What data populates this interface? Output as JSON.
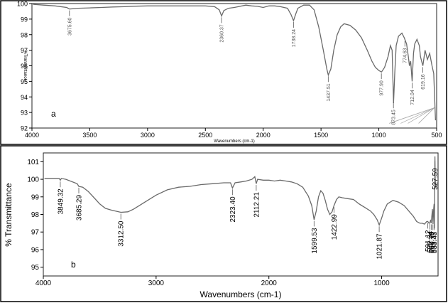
{
  "chart_data": [
    {
      "type": "line",
      "panel_label": "a",
      "title": "",
      "xlabel": "Wavenumbers (cm-1)",
      "ylabel": "%Transmittance",
      "xlim": [
        4000,
        500
      ],
      "ylim": [
        92,
        100
      ],
      "x_reversed": true,
      "grid": false,
      "x_ticks": [
        "4000",
        "3500",
        "3000",
        "2500",
        "2000",
        "1500",
        "1000",
        "500"
      ],
      "y_ticks": [
        "100",
        "99",
        "98",
        "97",
        "96",
        "95",
        "94",
        "93",
        "92"
      ],
      "series": [
        {
          "x": [
            3990,
            3900,
            3800,
            3700,
            3675,
            3600,
            3500,
            3400,
            3300,
            3200,
            3100,
            3000,
            2900,
            2800,
            2700,
            2600,
            2500,
            2420,
            2380,
            2360,
            2340,
            2300,
            2250,
            2150,
            2100,
            2050,
            2000,
            1950,
            1900,
            1850,
            1790,
            1760,
            1738,
            1715,
            1700,
            1650,
            1600,
            1560,
            1520,
            1480,
            1450,
            1437,
            1415,
            1390,
            1360,
            1330,
            1300,
            1250,
            1200,
            1150,
            1100,
            1060,
            1030,
            1000,
            977,
            950,
            920,
            900,
            885,
            873,
            862,
            850,
            830,
            800,
            780,
            760,
            745,
            735,
            725,
            712,
            700,
            690,
            670,
            650,
            640,
            630,
            619,
            600,
            580,
            560,
            540,
            525,
            510
          ],
          "y": [
            99.95,
            99.9,
            99.85,
            99.75,
            99.65,
            99.7,
            99.72,
            99.75,
            99.78,
            99.8,
            99.83,
            99.85,
            99.85,
            99.85,
            99.85,
            99.85,
            99.85,
            99.8,
            99.6,
            99.2,
            99.55,
            99.7,
            99.75,
            99.9,
            99.85,
            99.82,
            99.75,
            99.85,
            99.85,
            99.8,
            99.7,
            99.3,
            98.9,
            99.4,
            99.7,
            99.9,
            99.9,
            99.6,
            98.5,
            97.0,
            95.8,
            95.4,
            95.8,
            97.0,
            98.0,
            98.5,
            98.7,
            98.6,
            98.3,
            97.8,
            97.0,
            96.3,
            95.9,
            95.7,
            95.6,
            95.9,
            96.6,
            97.3,
            97.0,
            93.6,
            95.5,
            97.3,
            97.9,
            98.1,
            97.8,
            97.4,
            96.6,
            96.0,
            96.3,
            95.0,
            96.8,
            97.4,
            97.7,
            97.3,
            96.6,
            96.3,
            96.0,
            97.0,
            96.4,
            96.8,
            96.0,
            95.5,
            92.5
          ]
        }
      ],
      "peak_labels": [
        "3675.60",
        "2360.37",
        "1738.24",
        "1437.51",
        "977.90",
        "873.45",
        "774.63",
        "712.04",
        "619.16"
      ]
    },
    {
      "type": "line",
      "panel_label": "b",
      "title": "",
      "xlabel": "Wavenumbers (cm-1)",
      "ylabel": "% Transmittance",
      "xlim": [
        4000,
        500
      ],
      "ylim": [
        94.5,
        101.5
      ],
      "x_reversed": true,
      "grid": false,
      "x_ticks": [
        "4000",
        "3000",
        "2000",
        "1000"
      ],
      "y_ticks": [
        "101",
        "100",
        "99",
        "98",
        "97",
        "96",
        "95"
      ],
      "series": [
        {
          "x": [
            3990,
            3900,
            3860,
            3849,
            3840,
            3800,
            3700,
            3685,
            3650,
            3600,
            3550,
            3500,
            3450,
            3400,
            3350,
            3312,
            3250,
            3200,
            3100,
            3000,
            2900,
            2800,
            2700,
            2600,
            2500,
            2400,
            2340,
            2323,
            2300,
            2250,
            2200,
            2150,
            2125,
            2112,
            2100,
            2050,
            2000,
            1950,
            1900,
            1850,
            1800,
            1750,
            1700,
            1650,
            1620,
            1599,
            1580,
            1560,
            1540,
            1520,
            1500,
            1480,
            1460,
            1440,
            1423,
            1400,
            1380,
            1350,
            1300,
            1250,
            1200,
            1150,
            1100,
            1070,
            1040,
            1022,
            1000,
            980,
            950,
            900,
            850,
            800,
            760,
            720,
            690,
            660,
            640,
            620,
            600,
            591,
            580,
            572,
            565,
            561,
            550,
            545,
            540,
            535,
            533,
            530,
            528,
            525,
            520
          ],
          "y": [
            100.05,
            100.05,
            100.05,
            99.95,
            100.05,
            100.0,
            99.75,
            99.6,
            99.55,
            99.3,
            98.95,
            98.6,
            98.35,
            98.25,
            98.18,
            98.12,
            98.15,
            98.3,
            98.7,
            99.1,
            99.4,
            99.55,
            99.6,
            99.7,
            99.75,
            99.8,
            99.8,
            99.5,
            99.8,
            99.85,
            99.9,
            100.0,
            100.15,
            99.75,
            100.0,
            99.95,
            99.95,
            99.9,
            99.95,
            99.9,
            99.85,
            99.75,
            99.55,
            99.05,
            98.5,
            97.7,
            98.2,
            99.0,
            99.35,
            99.2,
            98.8,
            98.3,
            98.0,
            98.15,
            98.5,
            98.85,
            99.0,
            98.95,
            98.9,
            98.85,
            98.6,
            98.4,
            98.2,
            98.0,
            97.7,
            97.4,
            97.8,
            98.2,
            98.6,
            98.8,
            98.7,
            98.5,
            98.2,
            97.9,
            97.6,
            97.5,
            97.5,
            97.45,
            97.6,
            97.6,
            97.5,
            97.55,
            97.7,
            97.5,
            98.3,
            97.45,
            98.2,
            98.6,
            97.2,
            98.8,
            101.3,
            100.0,
            99.5
          ]
        }
      ],
      "peak_labels": [
        "3849.32",
        "3685.29",
        "3312.50",
        "2323.40",
        "2112.21",
        "1599.53",
        "1422.99",
        "1021.87",
        "591.12",
        "572.34",
        "560.78",
        "545.37",
        "533.45",
        "527.59"
      ]
    }
  ]
}
